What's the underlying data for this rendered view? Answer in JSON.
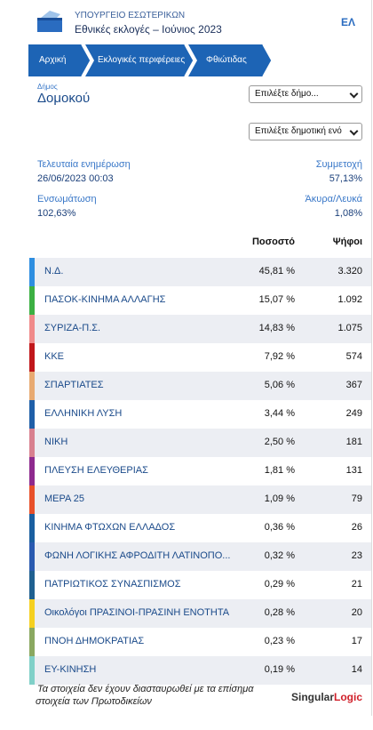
{
  "header": {
    "ministry": "ΥΠΟΥΡΓΕΙΟ ΕΣΩΤΕΡΙΚΩΝ",
    "title": "Εθνικές εκλογές – Ιούνιος 2023",
    "language": "ΕΛ"
  },
  "breadcrumb": [
    "Αρχική",
    "Εκλογικές περιφέρειες",
    "Φθιώτιδας"
  ],
  "municipality": {
    "label": "Δήμος",
    "name": "Δομοκού",
    "select": "Επιλέξτε δήμο...",
    "select_unit": "Επιλέξτε δημοτική ενό"
  },
  "stats": [
    {
      "label": "Τελευταία ενημέρωση",
      "value": "26/06/2023 00:03"
    },
    {
      "label": "Συμμετοχή",
      "value": "57,13%"
    },
    {
      "label": "Ενσωμάτωση",
      "value": "102,63%"
    },
    {
      "label": "Άκυρα/Λευκά",
      "value": "1,08%"
    }
  ],
  "table": {
    "columns": [
      "Ποσοστό",
      "Ψήφοι"
    ],
    "rows": [
      {
        "party": "Ν.Δ.",
        "percent": "45,81 %",
        "votes": "3.320",
        "color": "#2e8ee0"
      },
      {
        "party": "ΠΑΣΟΚ-ΚΙΝΗΜΑ ΑΛΛΑΓΗΣ",
        "percent": "15,07 %",
        "votes": "1.092",
        "color": "#3cb043"
      },
      {
        "party": "ΣΥΡΙΖΑ-Π.Σ.",
        "percent": "14,83 %",
        "votes": "1.075",
        "color": "#f08a8a"
      },
      {
        "party": "ΚΚΕ",
        "percent": "7,92 %",
        "votes": "574",
        "color": "#c0171b"
      },
      {
        "party": "ΣΠΑΡΤΙΑΤΕΣ",
        "percent": "5,06 %",
        "votes": "367",
        "color": "#e8aa72"
      },
      {
        "party": "ΕΛΛΗΝΙΚΗ ΛΥΣΗ",
        "percent": "3,44 %",
        "votes": "249",
        "color": "#1f5fa8"
      },
      {
        "party": "ΝΙΚΗ",
        "percent": "2,50 %",
        "votes": "181",
        "color": "#d8808f"
      },
      {
        "party": "ΠΛΕΥΣΗ ΕΛΕΥΘΕΡΙΑΣ",
        "percent": "1,81 %",
        "votes": "131",
        "color": "#8e2a8e"
      },
      {
        "party": "ΜΕΡΑ 25",
        "percent": "1,09 %",
        "votes": "79",
        "color": "#e8502a"
      },
      {
        "party": "ΚΙΝΗΜΑ ΦΤΩΧΩΝ ΕΛΛΑΔΟΣ",
        "percent": "0,36 %",
        "votes": "26",
        "color": "#1a5fa0"
      },
      {
        "party": "ΦΩΝΗ ΛΟΓΙΚΗΣ ΑΦΡΟΔΙΤΗ ΛΑΤΙΝΟΠΟ...",
        "percent": "0,32 %",
        "votes": "23",
        "color": "#2a5ab0"
      },
      {
        "party": "ΠΑΤΡΙΩΤΙΚΟΣ ΣΥΝΑΣΠΙΣΜΟΣ",
        "percent": "0,29 %",
        "votes": "21",
        "color": "#1f6090"
      },
      {
        "party": "Οικολόγοι ΠΡΑΣΙΝΟΙ-ΠΡΑΣΙΝΗ ΕΝΟΤΗΤΑ",
        "percent": "0,28 %",
        "votes": "20",
        "color": "#f5d020"
      },
      {
        "party": "ΠΝΟΗ ΔΗΜΟΚΡΑΤΙΑΣ",
        "percent": "0,23 %",
        "votes": "17",
        "color": "#8aa860"
      },
      {
        "party": "ΕΥ-ΚΙΝΗΣΗ",
        "percent": "0,19 %",
        "votes": "14",
        "color": "#80d0c8"
      }
    ]
  },
  "footer": {
    "note_line1": "Τα στοιχεία δεν έχουν διασταυρωθεί με τα επίσημα",
    "note_line2": "στοιχεία των Πρωτοδικείων",
    "logo_a": "Singular",
    "logo_b": "Logic"
  }
}
